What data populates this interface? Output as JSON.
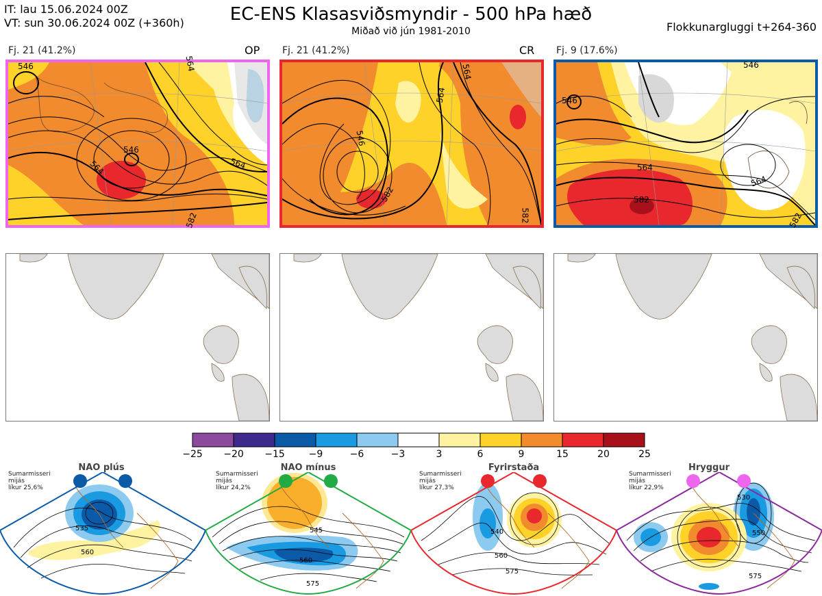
{
  "header": {
    "it_line": "IT: lau 15.06.2024 00Z",
    "vt_line": "VT: sun 30.06.2024 00Z  (+360h)",
    "title": "EC-ENS Klasasviðsmyndir - 500 hPa hæð",
    "subtitle": "Miðað við jún 1981-2010",
    "window": "Flokkunargluggi t+264-360"
  },
  "panels": [
    {
      "label": "Fj. 21 (41.2%)",
      "tag": "OP",
      "border_color": "#ee66ee",
      "contour_labels": [
        "546",
        "546",
        "564",
        "564",
        "564",
        "582"
      ]
    },
    {
      "label": "Fj. 21 (41.2%)",
      "tag": "CR",
      "border_color": "#e8282c",
      "contour_labels": [
        "546",
        "564",
        "564",
        "582",
        "582"
      ]
    },
    {
      "label": "Fj. 9 (17.6%)",
      "tag": "",
      "border_color": "#0a5aa8",
      "contour_labels": [
        "546",
        "546",
        "564",
        "564",
        "582",
        "582"
      ]
    }
  ],
  "colorbar": {
    "ticks": [
      "−25",
      "−20",
      "−15",
      "−9",
      "−6",
      "−3",
      "3",
      "6",
      "9",
      "15",
      "20",
      "25"
    ],
    "colors": [
      "#8b4a9c",
      "#3d2a8c",
      "#0a5aa8",
      "#1a9ae0",
      "#8ccbef",
      "#ffffff",
      "#fff2a0",
      "#ffd22a",
      "#f28a2e",
      "#e8282c",
      "#a8101a"
    ]
  },
  "regimes": [
    {
      "name": "NAO plús",
      "desc": [
        "Sumarmisseri",
        "mijás",
        "líkur 25,6%"
      ],
      "color": "#0a5aa8",
      "contour_labels": [
        "535",
        "560"
      ]
    },
    {
      "name": "NAO mínus",
      "desc": [
        "Sumarmisseri",
        "mijás",
        "líkur 24,2%"
      ],
      "color": "#22aa44",
      "contour_labels": [
        "545",
        "560",
        "575"
      ]
    },
    {
      "name": "Fyrirstaða",
      "desc": [
        "Sumarmisseri",
        "mijás",
        "líkur 27,3%"
      ],
      "color": "#e8282c",
      "contour_labels": [
        "540",
        "560",
        "575"
      ]
    },
    {
      "name": "Hryggur",
      "desc": [
        "Sumarmisseri",
        "mijás",
        "líkur 22,9%"
      ],
      "color": "#ee66ee",
      "contour_labels": [
        "530",
        "550",
        "575"
      ]
    }
  ]
}
